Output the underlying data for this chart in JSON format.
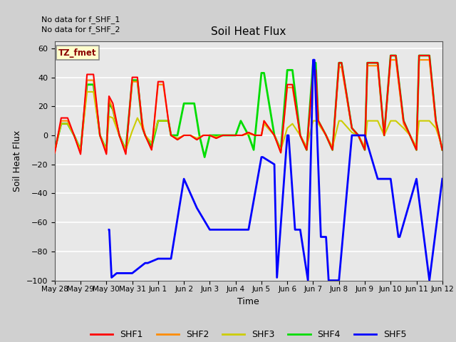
{
  "title": "Soil Heat Flux",
  "ylabel": "Soil Heat Flux",
  "xlabel": "Time",
  "annotation_lines": [
    "No data for f_SHF_1",
    "No data for f_SHF_2"
  ],
  "legend_label": "TZ_fmet",
  "ylim": [
    -100,
    65
  ],
  "yticks": [
    -100,
    -80,
    -60,
    -40,
    -20,
    0,
    20,
    40,
    60
  ],
  "colors": {
    "SHF1": "#ff0000",
    "SHF2": "#ff8c00",
    "SHF3": "#cccc00",
    "SHF4": "#00dd00",
    "SHF5": "#0000ff"
  },
  "background_color": "#d0d0d0",
  "plot_bg": "#e8e8e8",
  "x_labels": [
    "May 28",
    "May 29",
    "May 30",
    "May 31",
    "Jun 1",
    "Jun 2",
    "Jun 3",
    "Jun 4",
    "Jun 5",
    "Jun 6",
    "Jun 7",
    "Jun 8",
    "Jun 9",
    "Jun 10",
    "Jun 11",
    "Jun 12"
  ],
  "x_positions": [
    0,
    1,
    2,
    3,
    4,
    5,
    6,
    7,
    8,
    9,
    10,
    11,
    12,
    13,
    14,
    15
  ],
  "SHF1": {
    "x": [
      0.0,
      0.25,
      0.5,
      0.75,
      1.0,
      1.25,
      1.5,
      1.75,
      2.0,
      2.1,
      2.25,
      2.5,
      2.75,
      3.0,
      3.2,
      3.4,
      3.5,
      3.75,
      4.0,
      4.2,
      4.4,
      4.5,
      4.75,
      5.0,
      5.25,
      5.5,
      5.75,
      6.0,
      6.25,
      6.5,
      6.75,
      7.0,
      7.25,
      7.5,
      7.75,
      8.0,
      8.1,
      8.5,
      8.75,
      9.0,
      9.2,
      9.5,
      9.75,
      10.0,
      10.1,
      10.2,
      10.5,
      10.75,
      11.0,
      11.1,
      11.5,
      11.75,
      12.0,
      12.1,
      12.5,
      12.75,
      13.0,
      13.2,
      13.5,
      13.75,
      14.0,
      14.1,
      14.5,
      14.75,
      15.0
    ],
    "y": [
      -12,
      12,
      12,
      0,
      -13,
      42,
      42,
      0,
      -13,
      27,
      22,
      0,
      -13,
      40,
      40,
      5,
      0,
      -10,
      37,
      37,
      10,
      0,
      -3,
      0,
      0,
      -3,
      0,
      0,
      -2,
      0,
      0,
      0,
      0,
      2,
      0,
      0,
      10,
      0,
      -12,
      35,
      35,
      0,
      -10,
      45,
      45,
      10,
      0,
      -10,
      50,
      50,
      5,
      0,
      -10,
      50,
      50,
      0,
      55,
      55,
      10,
      0,
      -10,
      55,
      55,
      10,
      -10
    ]
  },
  "SHF2": {
    "x": [
      0.0,
      0.25,
      0.5,
      0.75,
      1.0,
      1.25,
      1.5,
      1.75,
      2.0,
      2.1,
      2.25,
      2.5,
      2.75,
      3.0,
      3.2,
      3.4,
      3.5,
      3.75,
      4.0,
      4.2,
      4.4,
      4.5,
      4.75,
      5.0,
      5.25,
      5.5,
      5.75,
      6.0,
      6.25,
      6.5,
      6.75,
      7.0,
      7.25,
      7.5,
      7.75,
      8.0,
      8.1,
      8.5,
      8.75,
      9.0,
      9.2,
      9.5,
      9.75,
      10.0,
      10.1,
      10.2,
      10.5,
      10.75,
      11.0,
      11.1,
      11.5,
      11.75,
      12.0,
      12.1,
      12.5,
      12.75,
      13.0,
      13.2,
      13.5,
      13.75,
      14.0,
      14.1,
      14.5,
      14.75,
      15.0
    ],
    "y": [
      -12,
      10,
      10,
      0,
      -12,
      38,
      38,
      0,
      -12,
      25,
      18,
      0,
      -12,
      37,
      37,
      8,
      0,
      -10,
      35,
      35,
      10,
      0,
      -3,
      0,
      0,
      -3,
      0,
      0,
      -2,
      0,
      0,
      0,
      0,
      2,
      0,
      0,
      10,
      0,
      -12,
      33,
      33,
      0,
      -10,
      42,
      42,
      10,
      0,
      -10,
      47,
      47,
      5,
      0,
      -10,
      48,
      48,
      0,
      52,
      52,
      8,
      0,
      -10,
      52,
      52,
      8,
      -10
    ]
  },
  "SHF3": {
    "x": [
      0.0,
      0.25,
      0.5,
      0.75,
      1.0,
      1.25,
      1.5,
      1.75,
      2.0,
      2.1,
      2.25,
      2.5,
      2.75,
      3.0,
      3.2,
      3.4,
      3.5,
      3.75,
      4.0,
      4.2,
      4.4,
      4.5,
      4.75,
      5.0,
      5.25,
      5.5,
      5.75,
      6.0,
      6.25,
      6.5,
      6.75,
      7.0,
      7.25,
      7.5,
      7.75,
      8.0,
      8.1,
      8.5,
      8.75,
      9.0,
      9.2,
      9.5,
      9.75,
      10.0,
      10.1,
      10.2,
      10.5,
      10.75,
      11.0,
      11.1,
      11.5,
      11.75,
      12.0,
      12.1,
      12.5,
      12.75,
      13.0,
      13.2,
      13.5,
      13.75,
      14.0,
      14.1,
      14.5,
      14.75,
      15.0
    ],
    "y": [
      -10,
      8,
      8,
      0,
      -10,
      30,
      30,
      0,
      -10,
      13,
      12,
      0,
      -10,
      3,
      12,
      5,
      0,
      -5,
      10,
      10,
      10,
      0,
      -2,
      0,
      0,
      -2,
      0,
      0,
      -1,
      0,
      0,
      0,
      0,
      1,
      0,
      0,
      8,
      0,
      -10,
      5,
      8,
      0,
      -8,
      10,
      10,
      8,
      0,
      -8,
      10,
      10,
      2,
      0,
      -8,
      10,
      10,
      0,
      10,
      10,
      5,
      0,
      -8,
      10,
      10,
      5,
      -8
    ]
  },
  "SHF4": {
    "x": [
      0.0,
      0.25,
      0.5,
      0.75,
      1.0,
      1.25,
      1.5,
      1.75,
      2.0,
      2.1,
      2.25,
      2.5,
      2.75,
      3.0,
      3.2,
      3.4,
      3.5,
      3.75,
      4.0,
      4.2,
      4.4,
      4.5,
      4.75,
      5.0,
      5.4,
      5.6,
      5.8,
      6.0,
      6.25,
      6.5,
      6.75,
      7.0,
      7.2,
      7.5,
      7.7,
      8.0,
      8.1,
      8.5,
      8.75,
      9.0,
      9.2,
      9.5,
      9.75,
      10.0,
      10.1,
      10.2,
      10.5,
      10.75,
      11.0,
      11.1,
      11.5,
      11.75,
      12.0,
      12.1,
      12.5,
      12.75,
      13.0,
      13.2,
      13.5,
      13.75,
      14.0,
      14.1,
      14.5,
      14.75,
      15.0
    ],
    "y": [
      -10,
      8,
      8,
      0,
      -10,
      35,
      35,
      0,
      -10,
      22,
      18,
      0,
      -10,
      38,
      38,
      5,
      0,
      -8,
      10,
      10,
      10,
      0,
      0,
      22,
      22,
      0,
      -15,
      0,
      0,
      0,
      0,
      0,
      10,
      0,
      -10,
      43,
      43,
      0,
      -10,
      45,
      45,
      0,
      -10,
      50,
      50,
      10,
      0,
      -10,
      50,
      50,
      5,
      0,
      -10,
      50,
      50,
      0,
      55,
      55,
      10,
      0,
      -10,
      55,
      55,
      10,
      -10
    ]
  },
  "SHF5": {
    "x": [
      2.1,
      2.11,
      2.2,
      2.4,
      2.6,
      3.0,
      3.5,
      3.6,
      4.0,
      4.5,
      5.0,
      5.5,
      6.0,
      6.5,
      7.0,
      7.5,
      8.0,
      8.05,
      8.5,
      8.6,
      9.0,
      9.05,
      9.3,
      9.35,
      9.5,
      9.8,
      10.0,
      10.05,
      10.3,
      10.35,
      10.5,
      10.6,
      11.0,
      11.5,
      12.0,
      12.5,
      13.0,
      13.3,
      13.35,
      14.0,
      14.5,
      15.0
    ],
    "y": [
      -65,
      -65,
      -98,
      -95,
      -95,
      -95,
      -88,
      -88,
      -85,
      -85,
      -30,
      -50,
      -65,
      -65,
      -65,
      -65,
      -15,
      -15,
      -20,
      -98,
      0,
      0,
      -65,
      -65,
      -65,
      -100,
      52,
      52,
      -70,
      -70,
      -70,
      -100,
      -100,
      0,
      0,
      -30,
      -30,
      -70,
      -70,
      -30,
      -100,
      -30
    ]
  }
}
